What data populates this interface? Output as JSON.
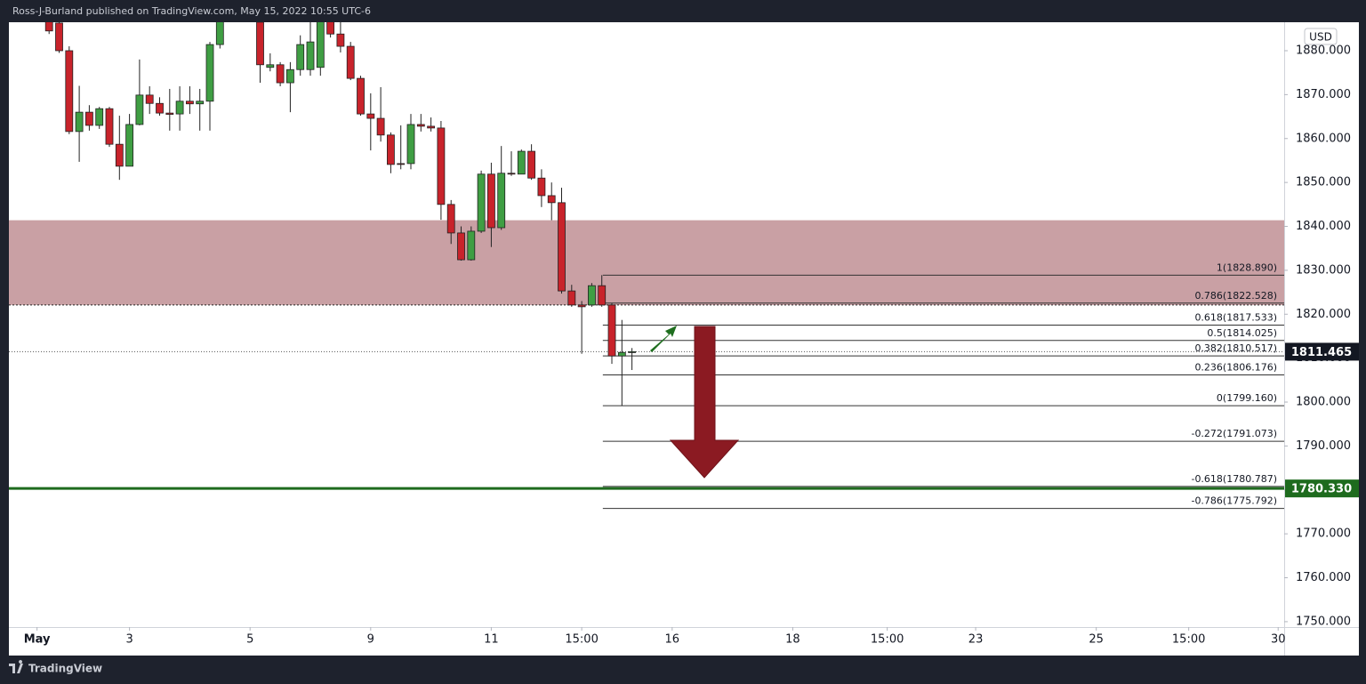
{
  "header": "Ross-J-Burland published on TradingView.com, May 15, 2022 10:55 UTC-6",
  "footer": "TradingView",
  "chart_data": {
    "type": "candlestick",
    "currency": "USD",
    "up_color": "#3f9e43",
    "down_color": "#c8232b",
    "xlim": [
      -3,
      123.9
    ],
    "ylim": [
      1748.77,
      1886.48
    ],
    "xticks": [
      {
        "value": -0.2,
        "label": "May"
      },
      {
        "value": 9,
        "label": "3"
      },
      {
        "value": 21,
        "label": "5"
      },
      {
        "value": 33,
        "label": "9"
      },
      {
        "value": 45,
        "label": "11"
      },
      {
        "value": 54,
        "label": "15:00"
      },
      {
        "value": 63,
        "label": "16"
      },
      {
        "value": 75,
        "label": "18"
      },
      {
        "value": 84.4,
        "label": "15:00"
      },
      {
        "value": 93.2,
        "label": "23"
      },
      {
        "value": 105.2,
        "label": "25"
      },
      {
        "value": 114.4,
        "label": "15:00"
      },
      {
        "value": 123.3,
        "label": "30"
      }
    ],
    "yticks": [
      {
        "value": 1750,
        "label": "1750.000"
      },
      {
        "value": 1760,
        "label": "1760.000"
      },
      {
        "value": 1770,
        "label": "1770.000"
      },
      {
        "value": 1780,
        "label": "1780.000"
      },
      {
        "value": 1790,
        "label": "1790.000"
      },
      {
        "value": 1800,
        "label": "1800.000"
      },
      {
        "value": 1810,
        "label": "1810.000"
      },
      {
        "value": 1820,
        "label": "1820.000"
      },
      {
        "value": 1830,
        "label": "1830.000"
      },
      {
        "value": 1840,
        "label": "1840.000"
      },
      {
        "value": 1850,
        "label": "1850.000"
      },
      {
        "value": 1860,
        "label": "1860.000"
      },
      {
        "value": 1870,
        "label": "1870.000"
      },
      {
        "value": 1880,
        "label": "1880.000"
      }
    ],
    "candles": {
      "x": [
        1,
        2,
        3,
        4,
        5,
        6,
        7,
        8,
        9,
        10,
        11,
        12,
        13,
        14,
        15,
        16,
        17,
        18,
        22,
        23,
        24,
        25,
        26,
        27,
        28,
        29,
        30,
        31,
        32,
        33,
        34,
        35,
        36,
        37,
        38,
        39,
        40,
        41,
        42,
        43,
        44,
        45,
        46,
        47,
        48,
        49,
        50,
        51,
        52,
        53,
        54,
        55,
        56,
        57,
        58,
        59
      ],
      "open": [
        1887,
        1886.3,
        1880,
        1861.6,
        1866,
        1863,
        1866.8,
        1858.7,
        1853.7,
        1863.2,
        1869.9,
        1868,
        1865.8,
        1865.6,
        1868.5,
        1867.9,
        1868.5,
        1881.4,
        1886.5,
        1876.2,
        1876.8,
        1872.7,
        1875.7,
        1875.7,
        1876.2,
        1887.5,
        1883.8,
        1881,
        1873.7,
        1865.6,
        1864.6,
        1860.8,
        1854.3,
        1854.3,
        1863.2,
        1862.8,
        1862.4,
        1845,
        1838.5,
        1832.4,
        1838.9,
        1851.9,
        1839.7,
        1852.1,
        1851.9,
        1857.1,
        1851,
        1847,
        1845.4,
        1825.3,
        1822.1,
        1822.1,
        1826.5,
        1822.1,
        1810.5,
        1811.3
      ],
      "high": [
        1888,
        1887,
        1881,
        1872,
        1867.6,
        1867.2,
        1867.2,
        1865.2,
        1865.6,
        1878,
        1871.9,
        1869.4,
        1871.3,
        1871.9,
        1871.9,
        1871.3,
        1882,
        1890,
        1888,
        1879.4,
        1877.4,
        1877.4,
        1883.5,
        1886.5,
        1889,
        1889,
        1886.5,
        1882,
        1874.3,
        1870.3,
        1871.7,
        1861.4,
        1863,
        1865.6,
        1865.6,
        1864.8,
        1864,
        1846,
        1840,
        1840,
        1852.7,
        1854.5,
        1858.3,
        1857.1,
        1857.5,
        1858.7,
        1853,
        1850,
        1848.8,
        1826.7,
        1823,
        1827.1,
        1828.9,
        1822.5,
        1818.7,
        1812.3
      ],
      "low": [
        1883.8,
        1879.5,
        1861,
        1854.7,
        1861.8,
        1862.2,
        1858.1,
        1850.6,
        1853.7,
        1863,
        1865.6,
        1865.2,
        1861.8,
        1861.8,
        1865.6,
        1861.8,
        1861.8,
        1880.5,
        1872.7,
        1875.3,
        1871.9,
        1866,
        1874.3,
        1874.3,
        1874.3,
        1883,
        1879.6,
        1873.3,
        1865.2,
        1857.3,
        1859.3,
        1852.1,
        1853,
        1853,
        1861.6,
        1861.6,
        1841.5,
        1836,
        1832.2,
        1832.2,
        1838.5,
        1835.3,
        1839.2,
        1851.5,
        1852.1,
        1850.6,
        1844.4,
        1841.4,
        1824.7,
        1821.7,
        1811,
        1821.7,
        1821.7,
        1808.7,
        1799.2,
        1807.3
      ],
      "close": [
        1884.5,
        1880,
        1861.6,
        1866,
        1863,
        1866.8,
        1858.7,
        1853.7,
        1863.2,
        1869.9,
        1868,
        1865.8,
        1865.5,
        1868.5,
        1867.9,
        1868.5,
        1881.4,
        1887.5,
        1876.8,
        1876.8,
        1872.7,
        1875.7,
        1881.4,
        1882,
        1887.5,
        1883.8,
        1881,
        1873.7,
        1865.6,
        1864.6,
        1860.8,
        1854.1,
        1854.1,
        1863.2,
        1862.8,
        1862.4,
        1845,
        1838.5,
        1832.4,
        1838.9,
        1851.9,
        1839.7,
        1852.1,
        1851.9,
        1857.1,
        1851,
        1847,
        1845.4,
        1825.3,
        1822.1,
        1821.7,
        1826.5,
        1822.1,
        1810.5,
        1811.3,
        1811.465
      ]
    },
    "zone": {
      "from": 1822.1,
      "to": 1841.4,
      "color": "#c9a0a4"
    },
    "fib_start_x": 56.1,
    "fib_levels": [
      {
        "value": 1828.89,
        "label": "1(1828.890)"
      },
      {
        "value": 1822.528,
        "label": "0.786(1822.528)"
      },
      {
        "value": 1817.533,
        "label": "0.618(1817.533)"
      },
      {
        "value": 1814.025,
        "label": "0.5(1814.025)"
      },
      {
        "value": 1810.517,
        "label": "0.382(1810.517)"
      },
      {
        "value": 1806.176,
        "label": "0.236(1806.176)"
      },
      {
        "value": 1799.16,
        "label": "0(1799.160)"
      },
      {
        "value": 1791.073,
        "label": "-0.272(1791.073)"
      },
      {
        "value": 1780.787,
        "label": "-0.618(1780.787)"
      },
      {
        "value": 1775.792,
        "label": "-0.786(1775.792)"
      }
    ],
    "support": {
      "value": 1780.33,
      "label": "1780.330",
      "color": "#1e6b1e"
    },
    "last_price": {
      "value": 1811.465,
      "label": "1811.465"
    }
  }
}
